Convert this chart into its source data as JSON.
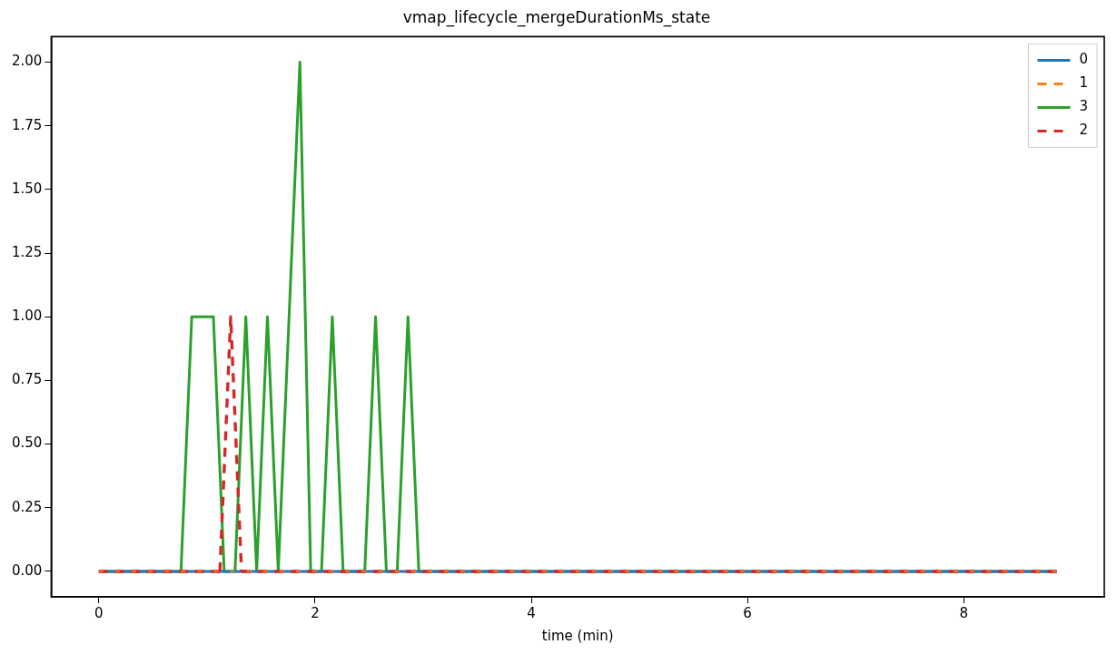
{
  "chart_data": {
    "type": "line",
    "title": "vmap_lifecycle_mergeDurationMs_state",
    "xlabel": "time (min)",
    "xlim": [
      -0.44,
      9.3
    ],
    "xticks": [
      0,
      2,
      4,
      6,
      8
    ],
    "ylim": [
      -0.1,
      2.1
    ],
    "yticks": [
      {
        "value": 0,
        "label": "0.00"
      },
      {
        "value": 0.25,
        "label": "0.25"
      },
      {
        "value": 0.5,
        "label": "0.50"
      },
      {
        "value": 0.75,
        "label": "0.75"
      },
      {
        "value": 1,
        "label": "1.00"
      },
      {
        "value": 1.25,
        "label": "1.25"
      },
      {
        "value": 1.5,
        "label": "1.50"
      },
      {
        "value": 1.75,
        "label": "1.75"
      },
      {
        "value": 2,
        "label": "2.00"
      }
    ],
    "grid": false,
    "legend": "top right",
    "marker": "none",
    "series": [
      {
        "name": "0",
        "color": "#1f77b4",
        "line_style": "solid",
        "x": [
          0,
          8.86
        ],
        "values": [
          0,
          0
        ]
      },
      {
        "name": "1",
        "color": "#ff7f0e",
        "line_style": "dashed",
        "x": [
          0,
          8.86
        ],
        "values": [
          0,
          0
        ]
      },
      {
        "name": "3",
        "color": "#2ca02c",
        "line_style": "solid",
        "x": [
          0,
          0.76,
          0.86,
          1.06,
          1.16,
          1.26,
          1.36,
          1.46,
          1.56,
          1.66,
          1.86,
          1.96,
          2.06,
          2.16,
          2.26,
          2.46,
          2.56,
          2.66,
          2.76,
          2.86,
          2.96,
          8.86
        ],
        "values": [
          0,
          0,
          1,
          1,
          0,
          0,
          1,
          0,
          1,
          0,
          2,
          0,
          0,
          1,
          0,
          0,
          1,
          0,
          0,
          1,
          0,
          0
        ]
      },
      {
        "name": "2",
        "color": "#d62728",
        "line_style": "dashed",
        "x": [
          0,
          1.12,
          1.22,
          1.32,
          8.86
        ],
        "values": [
          0,
          0,
          1,
          0,
          0
        ]
      }
    ]
  }
}
